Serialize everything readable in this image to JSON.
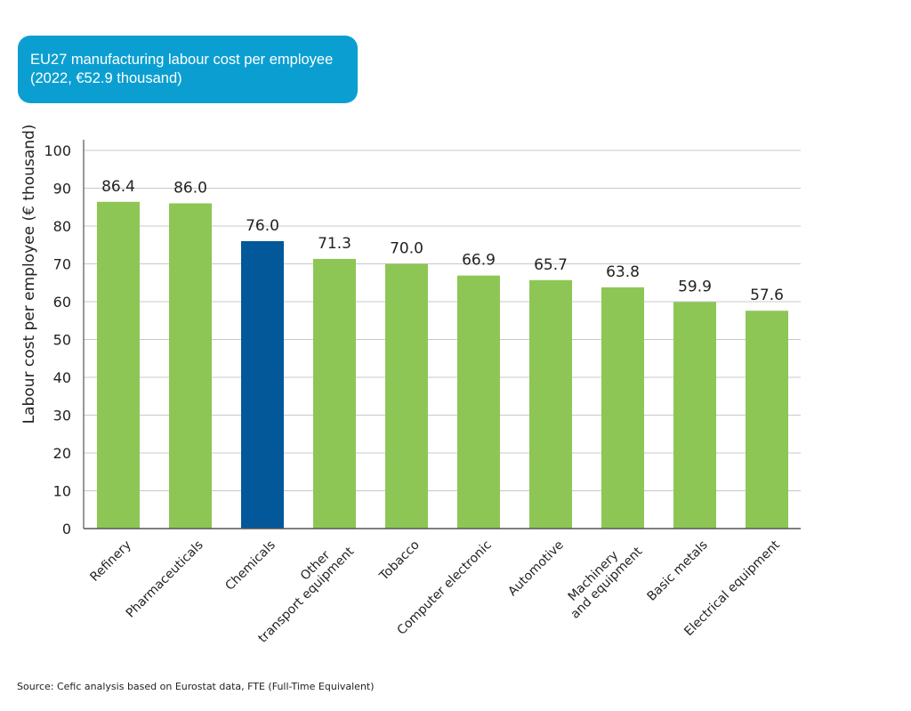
{
  "chart_data": {
    "type": "bar",
    "title": [
      "EU27 manufacturing labour cost per employee",
      "(2022, €52.9 thousand)"
    ],
    "ylabel": "Labour cost per employee (€ thousand)",
    "xlabel": "",
    "ylim": [
      0,
      100
    ],
    "yticks": [
      0,
      10,
      20,
      30,
      40,
      50,
      60,
      70,
      80,
      90,
      100
    ],
    "grid": true,
    "categories": [
      [
        "Refinery"
      ],
      [
        "Pharmaceuticals"
      ],
      [
        "Chemicals"
      ],
      [
        "Other",
        "transport equipment"
      ],
      [
        "Tobacco"
      ],
      [
        "Computer electronic"
      ],
      [
        "Automotive"
      ],
      [
        "Machinery",
        "and equipment"
      ],
      [
        "Basic metals"
      ],
      [
        "Electrical equipment"
      ]
    ],
    "values": [
      86.4,
      86.0,
      76.0,
      71.3,
      70.0,
      66.9,
      65.7,
      63.8,
      59.9,
      57.6
    ],
    "value_labels": [
      "86.4",
      "86.0",
      "76.0",
      "71.3",
      "70.0",
      "66.9",
      "65.7",
      "63.8",
      "59.9",
      "57.6"
    ],
    "highlight_category": "Chemicals",
    "colors": {
      "bar": "#8dc655",
      "highlight": "#03589a",
      "title_box": "#0b9fd1",
      "grid": "#c8c8c8",
      "axis": "#555555"
    }
  },
  "source": "Source: Cefic analysis based on Eurostat data, FTE (Full-Time Equivalent)"
}
